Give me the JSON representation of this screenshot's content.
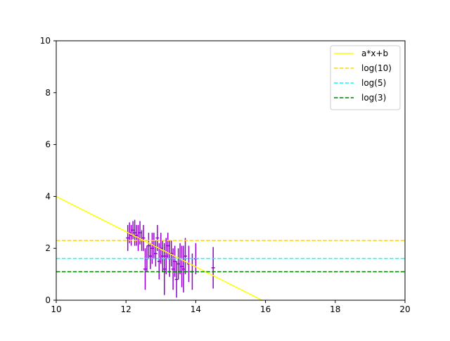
{
  "chart_data": {
    "type": "scatter",
    "title": "",
    "xlabel": "",
    "ylabel": "",
    "xlim": [
      10,
      20
    ],
    "ylim": [
      0,
      10
    ],
    "x_ticks": [
      10,
      12,
      14,
      16,
      18,
      20
    ],
    "y_ticks": [
      0,
      2,
      4,
      6,
      8,
      10
    ],
    "grid": false,
    "legend_position": "top-right",
    "lines": [
      {
        "name": "a*x+b",
        "type": "line",
        "color": "#ffff00",
        "dash": "solid",
        "x": [
          10,
          15.9
        ],
        "y": [
          4.0,
          0.0
        ]
      },
      {
        "name": "log(10)",
        "type": "hline",
        "color": "#ffd700",
        "dash": "dashed",
        "y": 2.303
      },
      {
        "name": "log(5)",
        "type": "hline",
        "color": "#00ffff",
        "dash": "dashed",
        "y": 1.609
      },
      {
        "name": "log(3)",
        "type": "hline",
        "color": "#008000",
        "dash": "dashed",
        "y": 1.099
      }
    ],
    "errorbar_series": {
      "color": "#9400d3",
      "points": [
        {
          "x": 12.05,
          "y": 2.4,
          "err": 0.5,
          "xerr": 0.05
        },
        {
          "x": 12.1,
          "y": 2.6,
          "err": 0.4,
          "xerr": 0.05
        },
        {
          "x": 12.15,
          "y": 2.5,
          "err": 0.4,
          "xerr": 0.05
        },
        {
          "x": 12.2,
          "y": 2.7,
          "err": 0.35,
          "xerr": 0.05
        },
        {
          "x": 12.25,
          "y": 2.6,
          "err": 0.5,
          "xerr": 0.05
        },
        {
          "x": 12.3,
          "y": 2.5,
          "err": 0.4,
          "xerr": 0.05
        },
        {
          "x": 12.35,
          "y": 2.4,
          "err": 0.5,
          "xerr": 0.05
        },
        {
          "x": 12.4,
          "y": 2.6,
          "err": 0.45,
          "xerr": 0.05
        },
        {
          "x": 12.45,
          "y": 2.3,
          "err": 0.4,
          "xerr": 0.05
        },
        {
          "x": 12.5,
          "y": 2.4,
          "err": 0.5,
          "xerr": 0.05
        },
        {
          "x": 12.55,
          "y": 1.2,
          "err": 0.8,
          "xerr": 0.05
        },
        {
          "x": 12.6,
          "y": 1.6,
          "err": 0.5,
          "xerr": 0.05
        },
        {
          "x": 12.65,
          "y": 2.1,
          "err": 0.5,
          "xerr": 0.05
        },
        {
          "x": 12.7,
          "y": 1.7,
          "err": 0.5,
          "xerr": 0.05
        },
        {
          "x": 12.75,
          "y": 2.0,
          "err": 0.6,
          "xerr": 0.05
        },
        {
          "x": 12.8,
          "y": 2.1,
          "err": 0.5,
          "xerr": 0.05
        },
        {
          "x": 12.85,
          "y": 1.8,
          "err": 0.5,
          "xerr": 0.05
        },
        {
          "x": 12.9,
          "y": 2.4,
          "err": 0.5,
          "xerr": 0.05
        },
        {
          "x": 12.95,
          "y": 1.5,
          "err": 0.7,
          "xerr": 0.05
        },
        {
          "x": 13.0,
          "y": 2.0,
          "err": 0.6,
          "xerr": 0.05
        },
        {
          "x": 13.05,
          "y": 1.7,
          "err": 0.6,
          "xerr": 0.05
        },
        {
          "x": 13.1,
          "y": 1.2,
          "err": 1.0,
          "xerr": 0.05
        },
        {
          "x": 13.15,
          "y": 1.7,
          "err": 0.7,
          "xerr": 0.05
        },
        {
          "x": 13.2,
          "y": 2.1,
          "err": 0.5,
          "xerr": 0.05
        },
        {
          "x": 13.25,
          "y": 1.6,
          "err": 0.7,
          "xerr": 0.05
        },
        {
          "x": 13.3,
          "y": 1.8,
          "err": 0.5,
          "xerr": 0.05
        },
        {
          "x": 13.35,
          "y": 1.2,
          "err": 0.8,
          "xerr": 0.05
        },
        {
          "x": 13.4,
          "y": 1.5,
          "err": 0.6,
          "xerr": 0.05
        },
        {
          "x": 13.45,
          "y": 0.8,
          "err": 0.7,
          "xerr": 0.05
        },
        {
          "x": 13.5,
          "y": 1.4,
          "err": 0.6,
          "xerr": 0.05
        },
        {
          "x": 13.55,
          "y": 1.6,
          "err": 0.6,
          "xerr": 0.05
        },
        {
          "x": 13.6,
          "y": 1.3,
          "err": 0.8,
          "xerr": 0.05
        },
        {
          "x": 13.65,
          "y": 1.2,
          "err": 0.9,
          "xerr": 0.05
        },
        {
          "x": 13.7,
          "y": 1.7,
          "err": 0.7,
          "xerr": 0.05
        },
        {
          "x": 13.8,
          "y": 1.4,
          "err": 0.7,
          "xerr": 0.05
        },
        {
          "x": 13.9,
          "y": 1.1,
          "err": 0.7,
          "xerr": 0.05
        },
        {
          "x": 14.0,
          "y": 1.6,
          "err": 0.6,
          "xerr": 0.05
        },
        {
          "x": 14.5,
          "y": 1.25,
          "err": 0.8,
          "xerr": 0.05
        }
      ]
    }
  }
}
